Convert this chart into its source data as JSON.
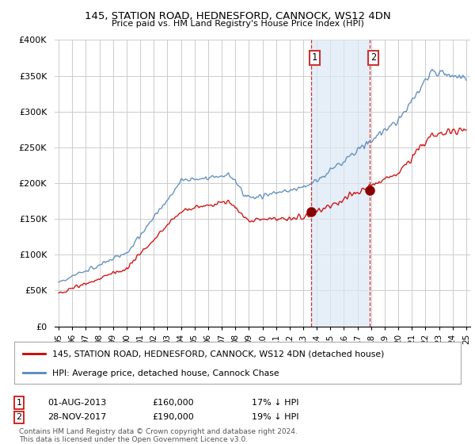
{
  "title": "145, STATION ROAD, HEDNESFORD, CANNOCK, WS12 4DN",
  "subtitle": "Price paid vs. HM Land Registry's House Price Index (HPI)",
  "legend_line1": "145, STATION ROAD, HEDNESFORD, CANNOCK, WS12 4DN (detached house)",
  "legend_line2": "HPI: Average price, detached house, Cannock Chase",
  "annotation1_label": "1",
  "annotation1_date": "01-AUG-2013",
  "annotation1_price": "£160,000",
  "annotation1_hpi": "17% ↓ HPI",
  "annotation2_label": "2",
  "annotation2_date": "28-NOV-2017",
  "annotation2_price": "£190,000",
  "annotation2_hpi": "19% ↓ HPI",
  "footnote1": "Contains HM Land Registry data © Crown copyright and database right 2024.",
  "footnote2": "This data is licensed under the Open Government Licence v3.0.",
  "house_color": "#cc0000",
  "hpi_color": "#5588bb",
  "hpi_fill_color": "#dce8f5",
  "annotation_color": "#cc0000",
  "background_color": "#ffffff",
  "grid_color": "#cccccc",
  "ylim": [
    0,
    400000
  ],
  "yticks": [
    0,
    50000,
    100000,
    150000,
    200000,
    250000,
    300000,
    350000,
    400000
  ],
  "sale1_x": 2013.58,
  "sale1_y": 160000,
  "sale2_x": 2017.91,
  "sale2_y": 190000,
  "vline1_x": 2013.58,
  "vline2_x": 2017.91,
  "shade_xmin": 2013.58,
  "shade_xmax": 2017.91,
  "xmin": 1994.7,
  "xmax": 2025.3
}
